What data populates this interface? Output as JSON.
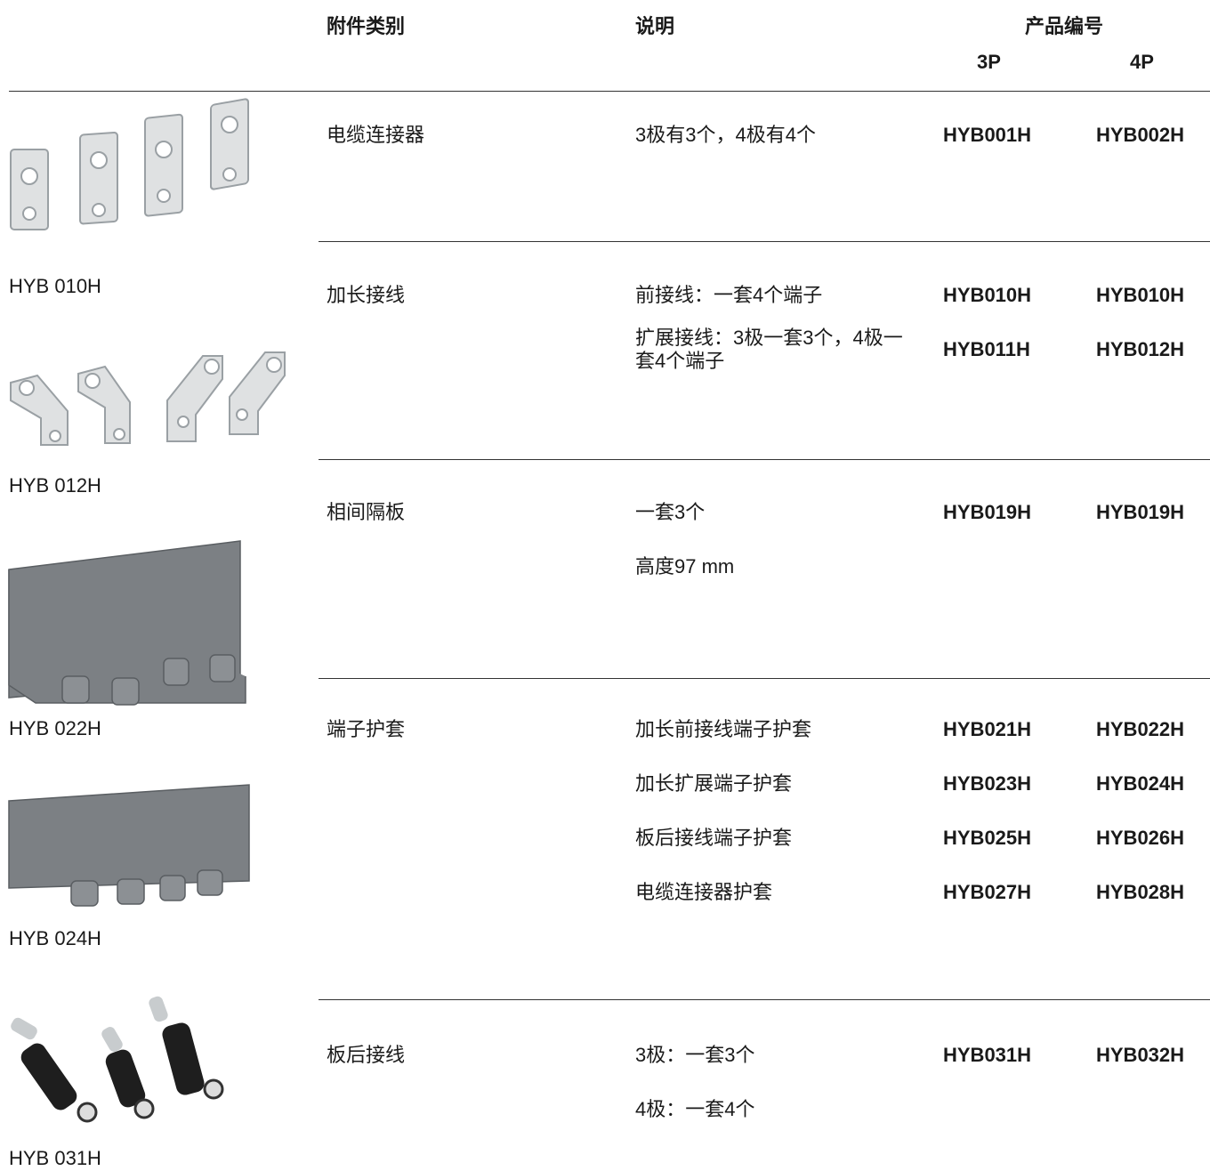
{
  "header": {
    "category": "附件类别",
    "description": "说明",
    "product_code": "产品编号",
    "p3": "3P",
    "p4": "4P"
  },
  "rows": [
    {
      "category": "电缆连接器",
      "items": [
        {
          "description": "3极有3个，4极有4个",
          "code_3p": "HYB001H",
          "code_4p": "HYB002H"
        }
      ]
    },
    {
      "category": "加长接线",
      "items": [
        {
          "description": "前接线：一套4个端子",
          "code_3p": "HYB010H",
          "code_4p": "HYB010H"
        },
        {
          "description": "扩展接线：3极一套3个，4极一套4个端子",
          "code_3p": "HYB011H",
          "code_4p": "HYB012H"
        }
      ]
    },
    {
      "category": "相间隔板",
      "items": [
        {
          "description": "一套3个",
          "code_3p": "HYB019H",
          "code_4p": "HYB019H"
        },
        {
          "description": "高度97 mm"
        }
      ]
    },
    {
      "category": "端子护套",
      "items": [
        {
          "description": "加长前接线端子护套",
          "code_3p": "HYB021H",
          "code_4p": "HYB022H"
        },
        {
          "description": "加长扩展端子护套",
          "code_3p": "HYB023H",
          "code_4p": "HYB024H"
        },
        {
          "description": "板后接线端子护套",
          "code_3p": "HYB025H",
          "code_4p": "HYB026H"
        },
        {
          "description": "电缆连接器护套",
          "code_3p": "HYB027H",
          "code_4p": "HYB028H"
        }
      ]
    },
    {
      "category": "板后接线",
      "items": [
        {
          "description": "3极：一套3个",
          "code_3p": "HYB031H",
          "code_4p": "HYB032H"
        },
        {
          "description": "4极：一套4个"
        }
      ]
    }
  ],
  "images": [
    {
      "caption": "HYB 010H"
    },
    {
      "caption": "HYB 012H"
    },
    {
      "caption": "HYB 022H"
    },
    {
      "caption": "HYB 024H"
    },
    {
      "caption": "HYB 031H"
    }
  ]
}
